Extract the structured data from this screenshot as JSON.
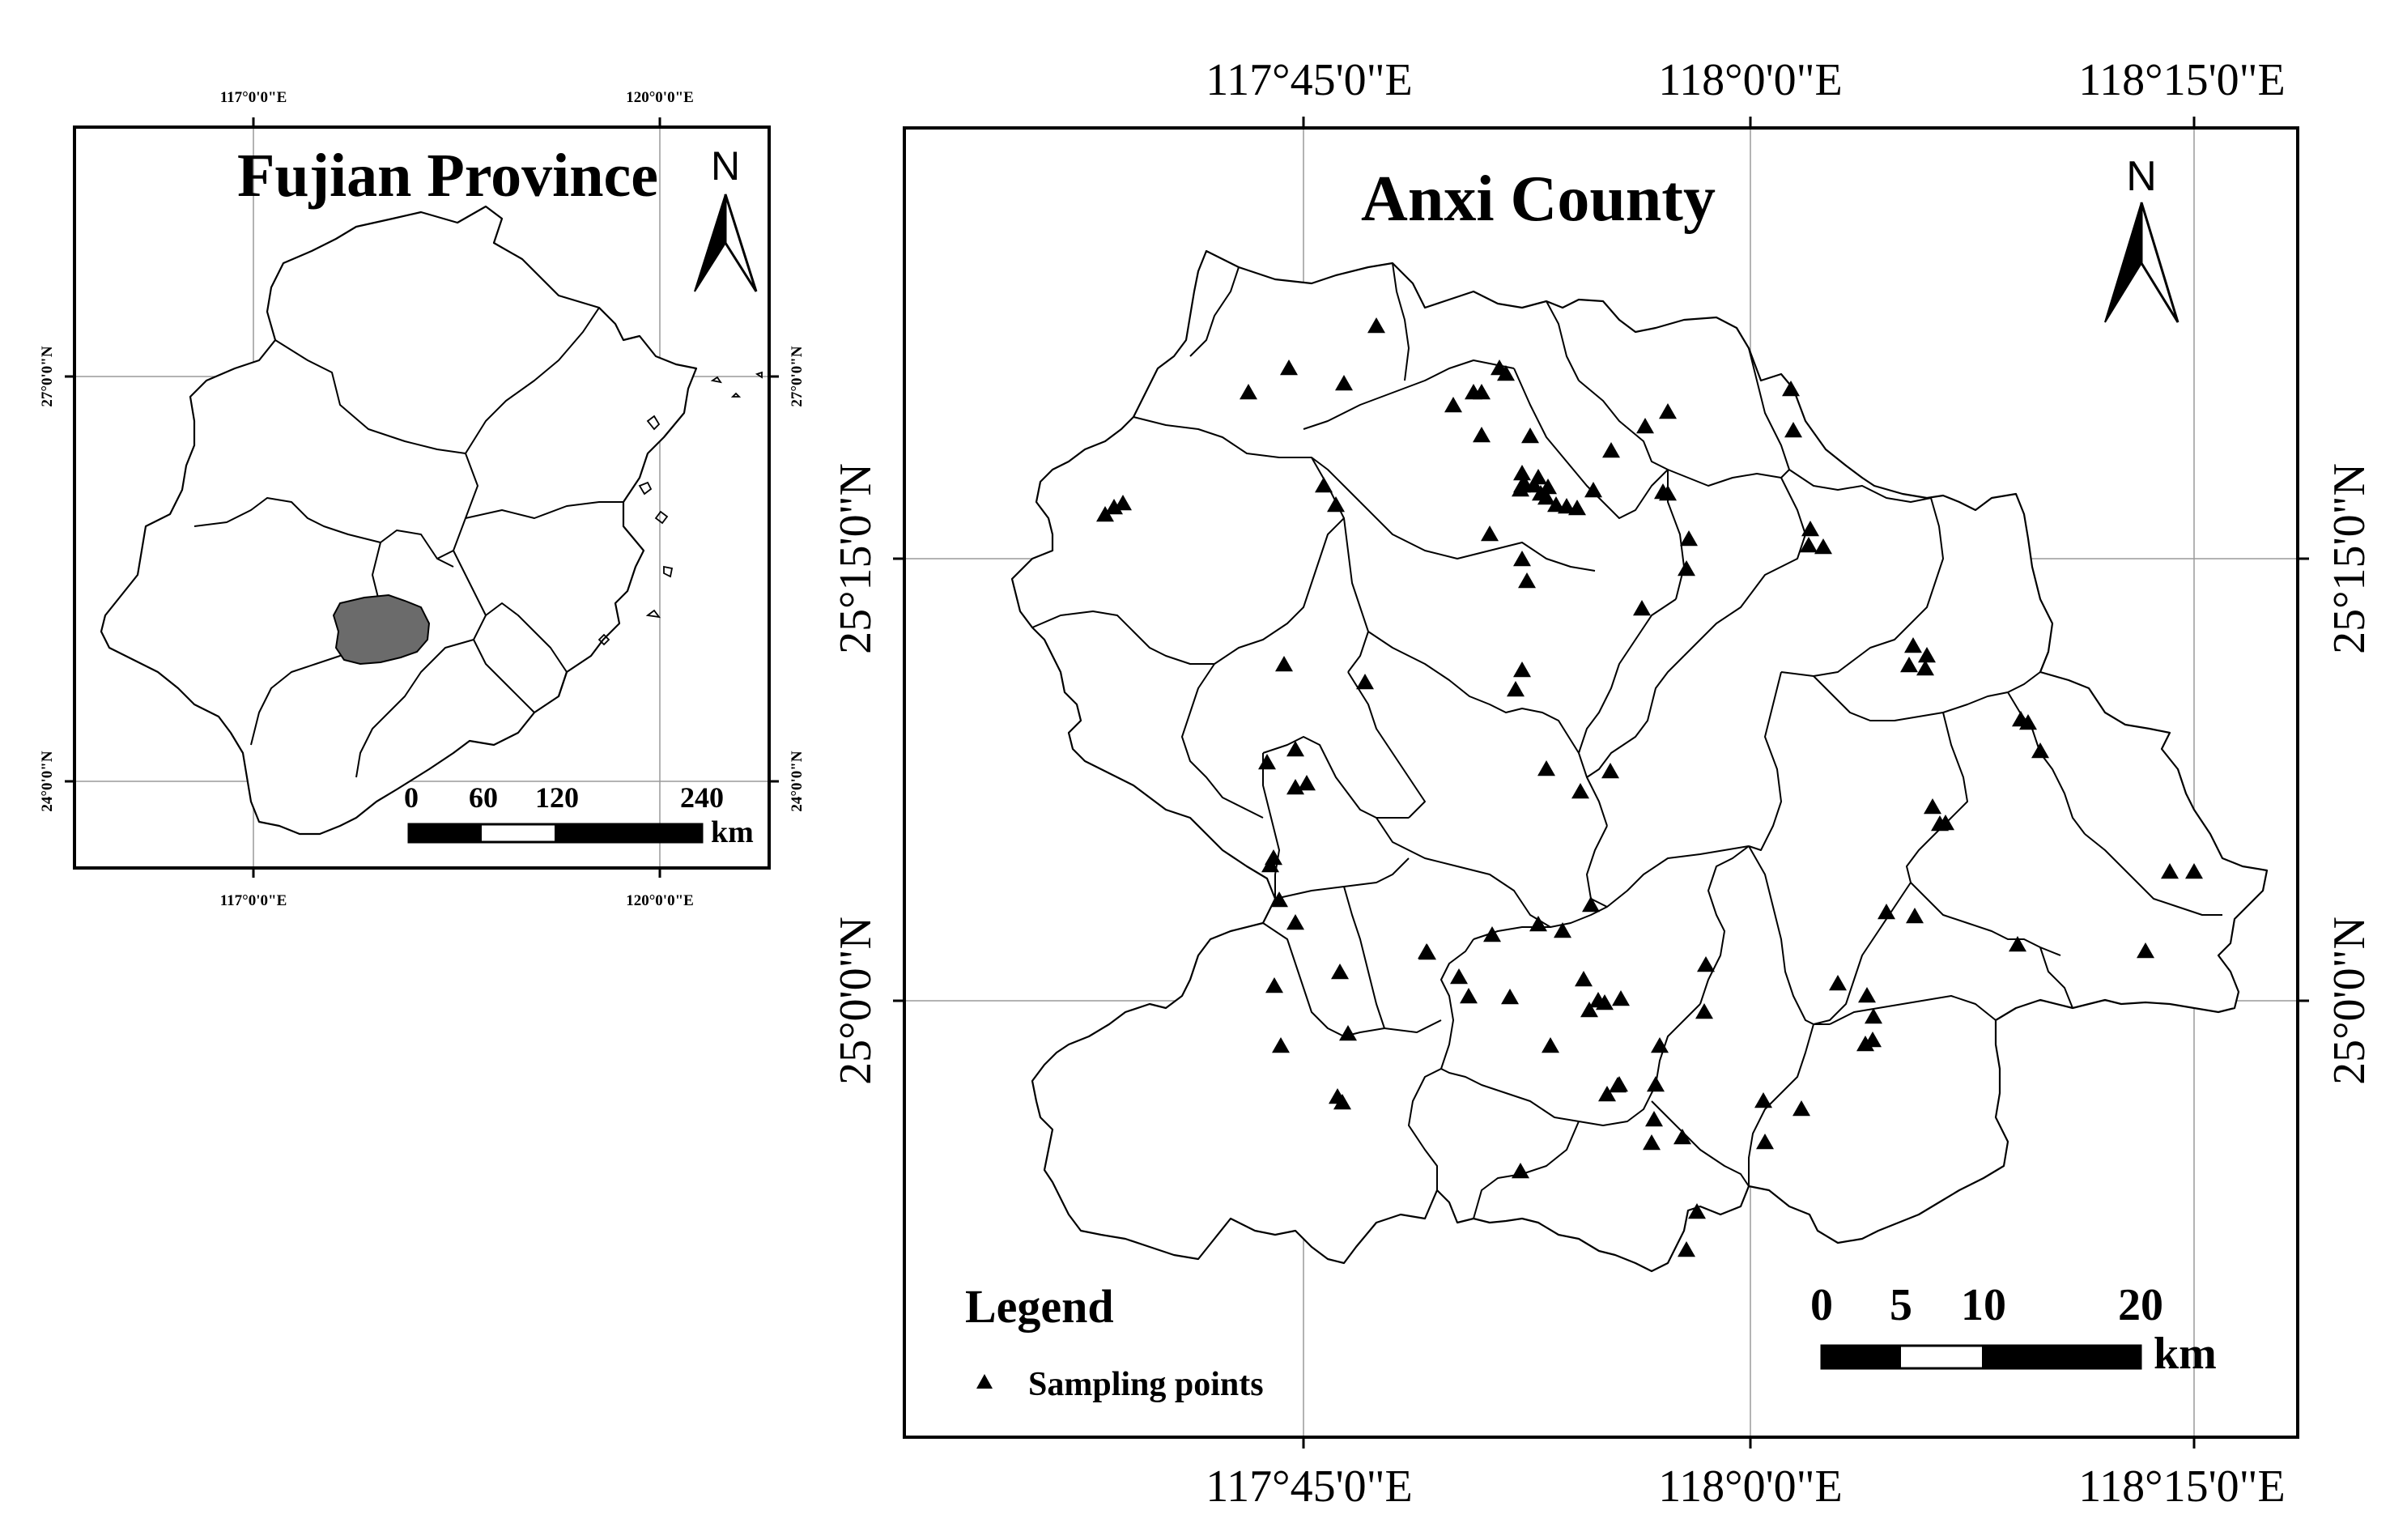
{
  "inset": {
    "title": "Fujian Province",
    "north": "N",
    "top_labels": [
      "117°0'0\"E",
      "120°0'0\"E"
    ],
    "bottom_labels": [
      "117°0'0\"E",
      "120°0'0\"E"
    ],
    "left_labels": [
      "27°0'0\"N",
      "24°0'0\"N"
    ],
    "right_labels": [
      "27°0'0\"N",
      "24°0'0\"N"
    ],
    "scale_numbers": [
      "0",
      "60",
      "120",
      "240"
    ],
    "scale_unit": "km",
    "highlight_color": "#6b6b6b"
  },
  "main": {
    "title": "Anxi County",
    "north": "N",
    "top_labels": [
      "117°45'0\"E",
      "118°0'0\"E",
      "118°15'0\"E"
    ],
    "bottom_labels": [
      "117°45'0\"E",
      "118°0'0\"E",
      "118°15'0\"E"
    ],
    "left_labels": [
      "25°15'0\"N",
      "25°0'0\"N"
    ],
    "right_labels": [
      "25°15'0\"N",
      "25°0'0\"N"
    ],
    "scale_numbers": [
      "0",
      "5",
      "10",
      "20"
    ],
    "scale_unit": "km",
    "legend_title": "Legend",
    "legend_item": "Sampling points",
    "point_symbol": "triangle"
  }
}
